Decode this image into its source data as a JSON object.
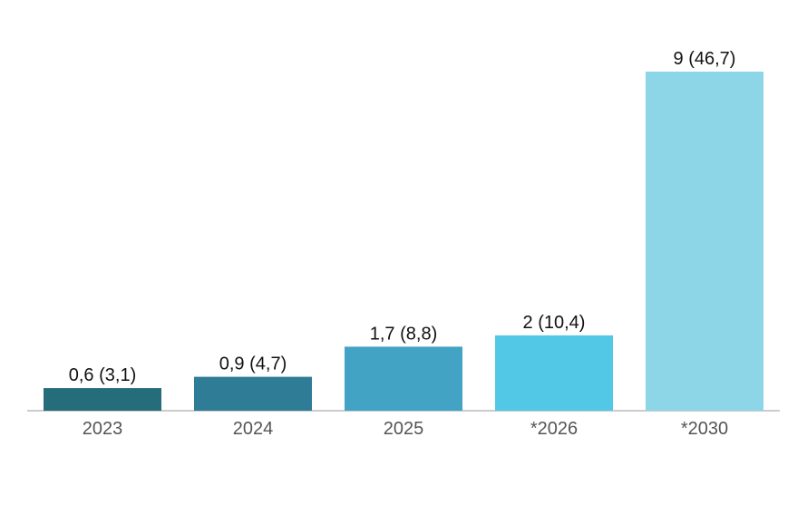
{
  "chart_data": {
    "type": "bar",
    "categories": [
      "2023",
      "2024",
      "2025",
      "*2026",
      "*2030"
    ],
    "values": [
      0.6,
      0.9,
      1.7,
      2,
      9
    ],
    "value_labels": [
      "0,6 (3,1)",
      "0,9 (4,7)",
      "1,7 (8,8)",
      "2 (10,4)",
      "9 (46,7)"
    ],
    "colors": [
      "#256d7b",
      "#2e7c96",
      "#42a3c4",
      "#52c8e6",
      "#8dd6e8"
    ]
  }
}
